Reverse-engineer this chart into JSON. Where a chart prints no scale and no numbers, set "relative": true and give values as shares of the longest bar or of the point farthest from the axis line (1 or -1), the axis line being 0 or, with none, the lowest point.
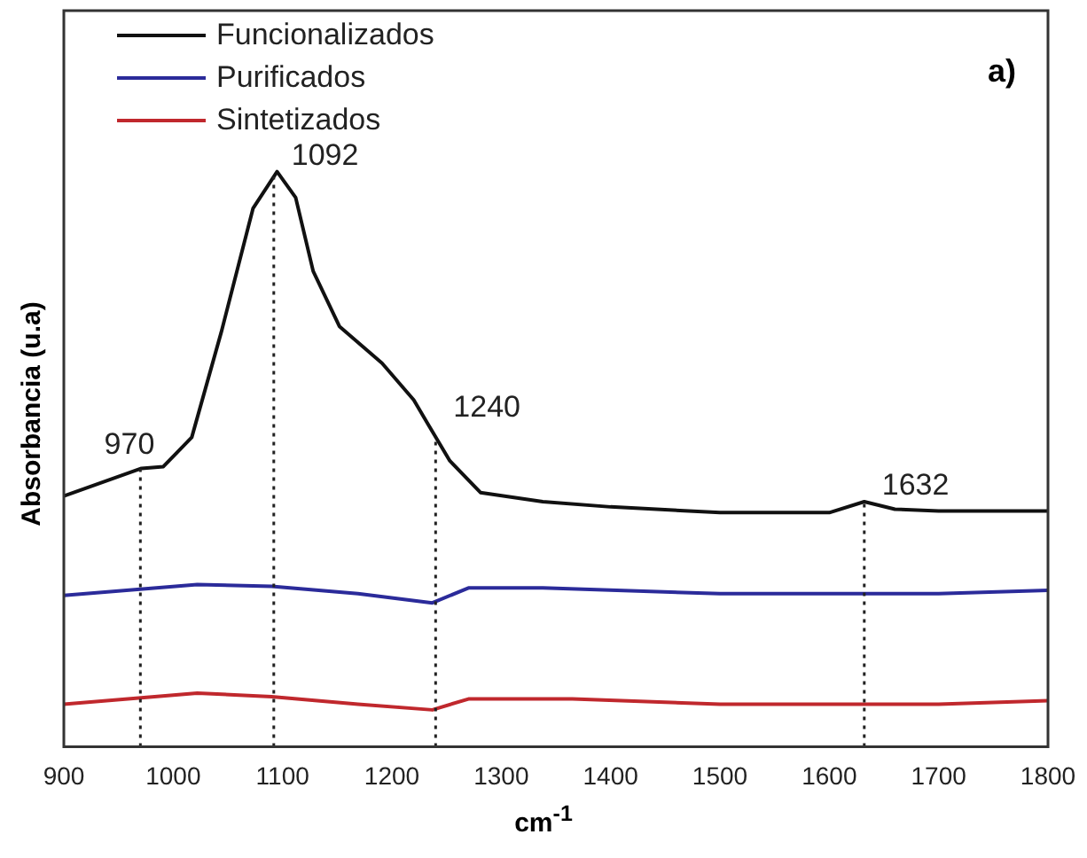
{
  "chart_data": {
    "type": "line",
    "relative": true,
    "xlabel": "cm$^{-1}$",
    "ylabel": "Absorbancia (u.a)",
    "xlim": [
      900,
      1800
    ],
    "xticks": [
      900,
      1000,
      1100,
      1200,
      1300,
      1400,
      1500,
      1600,
      1700,
      1800
    ],
    "grid": false,
    "legend": "top left",
    "marker": "none",
    "line_style": "solid",
    "series": [
      {
        "name": "Funcionalizados",
        "color": "#111111",
        "x": [
          900,
          971,
          991,
          1017,
          1044,
          1073,
          1095,
          1112,
          1128,
          1152,
          1191,
          1220,
          1233,
          1253,
          1281,
          1338,
          1400,
          1500,
          1600,
          1632,
          1660,
          1700,
          1800
        ],
        "values": [
          0.436,
          0.484,
          0.487,
          0.538,
          0.721,
          0.936,
          1,
          0.955,
          0.827,
          0.731,
          0.667,
          0.603,
          0.561,
          0.497,
          0.442,
          0.426,
          0.417,
          0.407,
          0.407,
          0.426,
          0.413,
          0.41,
          0.41
        ]
      },
      {
        "name": "Purificados",
        "color": "#2b2b9a",
        "x": [
          900,
          1022,
          1090,
          1169,
          1237,
          1270,
          1338,
          1500,
          1700,
          1800
        ],
        "values": [
          0.263,
          0.282,
          0.279,
          0.266,
          0.25,
          0.276,
          0.276,
          0.266,
          0.266,
          0.272
        ]
      },
      {
        "name": "Sintetizados",
        "color": "#c0282d",
        "x": [
          900,
          1022,
          1090,
          1169,
          1237,
          1270,
          1365,
          1500,
          1700,
          1800
        ],
        "values": [
          0.074,
          0.093,
          0.087,
          0.074,
          0.064,
          0.083,
          0.083,
          0.074,
          0.074,
          0.08
        ]
      }
    ],
    "ref_lines": [
      {
        "axis": "x",
        "value": 970,
        "line_style": "dotted"
      },
      {
        "axis": "x",
        "value": 1092,
        "line_style": "dotted"
      },
      {
        "axis": "x",
        "value": 1240,
        "line_style": "dotted"
      },
      {
        "axis": "x",
        "value": 1632,
        "line_style": "dotted"
      }
    ],
    "annotations": [
      {
        "text": "970",
        "x": 970,
        "y": 0.484
      },
      {
        "text": "1092",
        "x": 1092,
        "y": 1
      },
      {
        "text": "1240",
        "x": 1240,
        "y": 0.561
      },
      {
        "text": "1632",
        "x": 1632,
        "y": 0.426
      },
      "a)"
    ]
  }
}
